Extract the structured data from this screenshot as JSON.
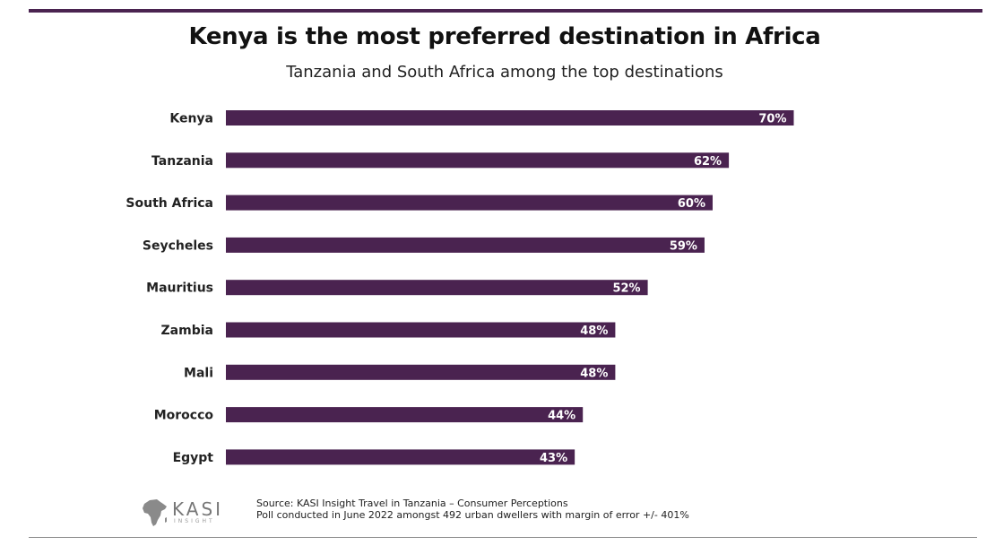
{
  "title": "Kenya is the most preferred destination in Africa",
  "subtitle": "Tanzania and South Africa among the top destinations",
  "colors": {
    "bar": "#4a2350",
    "rule": "#4a2350"
  },
  "chart_data": {
    "type": "bar",
    "orientation": "horizontal",
    "title": "Kenya is the most preferred destination in Africa",
    "subtitle": "Tanzania and South Africa among the top destinations",
    "categories": [
      "Kenya",
      "Tanzania",
      "South Africa",
      "Seycheles",
      "Mauritius",
      "Zambia",
      "Mali",
      "Morocco",
      "Egypt"
    ],
    "values": [
      70,
      62,
      60,
      59,
      52,
      48,
      48,
      44,
      43
    ],
    "value_labels": [
      "70%",
      "62%",
      "60%",
      "59%",
      "52%",
      "48%",
      "48%",
      "44%",
      "43%"
    ],
    "unit": "%",
    "xlim": [
      0,
      100
    ],
    "grid": false,
    "legend": "none"
  },
  "footer": {
    "logo_text": "KASI",
    "logo_subtext": "INSIGHT",
    "source_line": "Source: KASI Insight Travel in Tanzania – Consumer Perceptions",
    "poll_line": "Poll conducted in June 2022 amongst 492 urban dwellers with margin of error +/- 401%"
  }
}
